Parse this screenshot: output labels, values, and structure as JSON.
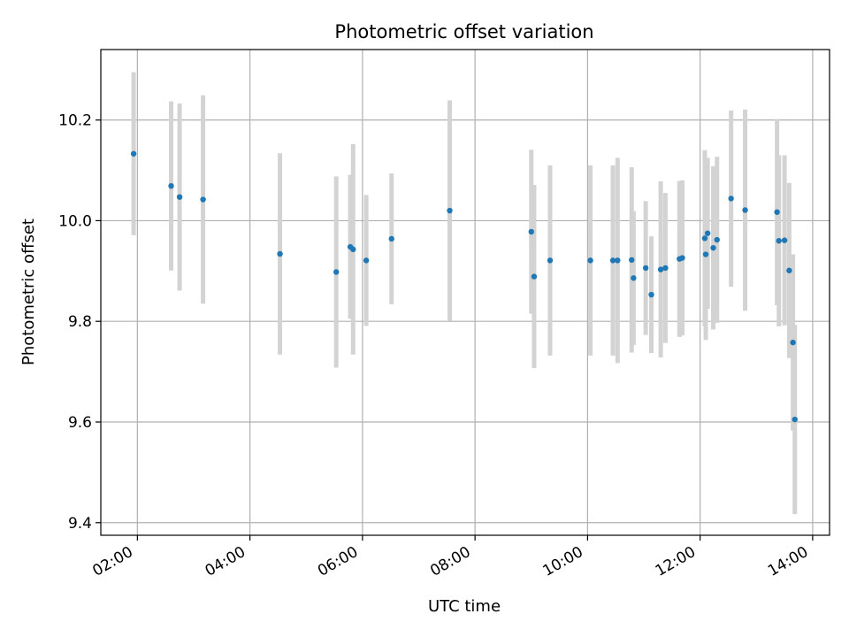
{
  "chart_data": {
    "type": "scatter",
    "title": "Photometric offset variation",
    "xlabel": "UTC time",
    "ylabel": "Photometric offset",
    "x_tick_labels": [
      "02:00",
      "04:00",
      "06:00",
      "08:00",
      "10:00",
      "12:00",
      "14:00"
    ],
    "x_tick_values": [
      "02:00",
      "04:00",
      "06:00",
      "08:00",
      "10:00",
      "12:00",
      "14:00"
    ],
    "y_ticks": [
      9.4,
      9.6,
      9.8,
      10.0,
      10.2
    ],
    "y_tick_labels": [
      "9.4",
      "9.6",
      "9.8",
      "10.0",
      "10.2"
    ],
    "xlim": [
      "01:21",
      "14:18"
    ],
    "ylim": [
      9.375,
      10.34
    ],
    "grid": true,
    "marker_color": "#1f77b4",
    "errorbar_color": "#d3d3d3",
    "points": [
      {
        "x": "01:56",
        "y": 10.133,
        "err": 0.162
      },
      {
        "x": "02:36",
        "y": 10.069,
        "err": 0.168
      },
      {
        "x": "02:45",
        "y": 10.047,
        "err": 0.186
      },
      {
        "x": "03:10",
        "y": 10.042,
        "err": 0.207
      },
      {
        "x": "04:32",
        "y": 9.934,
        "err": 0.2
      },
      {
        "x": "05:32",
        "y": 9.898,
        "err": 0.19
      },
      {
        "x": "05:47",
        "y": 9.948,
        "err": 0.143
      },
      {
        "x": "05:50",
        "y": 9.943,
        "err": 0.209
      },
      {
        "x": "06:04",
        "y": 9.921,
        "err": 0.13
      },
      {
        "x": "06:31",
        "y": 9.964,
        "err": 0.13
      },
      {
        "x": "07:33",
        "y": 10.02,
        "err": 0.219
      },
      {
        "x": "09:00",
        "y": 9.978,
        "err": 0.163
      },
      {
        "x": "09:03",
        "y": 9.889,
        "err": 0.182
      },
      {
        "x": "09:20",
        "y": 9.921,
        "err": 0.189
      },
      {
        "x": "10:03",
        "y": 9.921,
        "err": 0.189
      },
      {
        "x": "10:27",
        "y": 9.921,
        "err": 0.189
      },
      {
        "x": "10:32",
        "y": 9.921,
        "err": 0.204
      },
      {
        "x": "10:47",
        "y": 9.922,
        "err": 0.184
      },
      {
        "x": "10:49",
        "y": 9.886,
        "err": 0.133
      },
      {
        "x": "11:02",
        "y": 9.906,
        "err": 0.133
      },
      {
        "x": "11:08",
        "y": 9.853,
        "err": 0.116
      },
      {
        "x": "11:18",
        "y": 9.903,
        "err": 0.175
      },
      {
        "x": "11:23",
        "y": 9.906,
        "err": 0.149
      },
      {
        "x": "11:38",
        "y": 9.924,
        "err": 0.155
      },
      {
        "x": "11:41",
        "y": 9.926,
        "err": 0.154
      },
      {
        "x": "12:05",
        "y": 9.965,
        "err": 0.175
      },
      {
        "x": "12:06",
        "y": 9.933,
        "err": 0.17
      },
      {
        "x": "12:08",
        "y": 9.975,
        "err": 0.15
      },
      {
        "x": "12:14",
        "y": 9.946,
        "err": 0.162
      },
      {
        "x": "12:18",
        "y": 9.962,
        "err": 0.165
      },
      {
        "x": "12:33",
        "y": 10.044,
        "err": 0.175
      },
      {
        "x": "12:48",
        "y": 10.021,
        "err": 0.2
      },
      {
        "x": "13:22",
        "y": 10.017,
        "err": 0.185
      },
      {
        "x": "13:24",
        "y": 9.96,
        "err": 0.17
      },
      {
        "x": "13:30",
        "y": 9.961,
        "err": 0.169
      },
      {
        "x": "13:35",
        "y": 9.901,
        "err": 0.174
      },
      {
        "x": "13:39",
        "y": 9.758,
        "err": 0.175
      },
      {
        "x": "13:41",
        "y": 9.605,
        "err": 0.188
      }
    ]
  }
}
